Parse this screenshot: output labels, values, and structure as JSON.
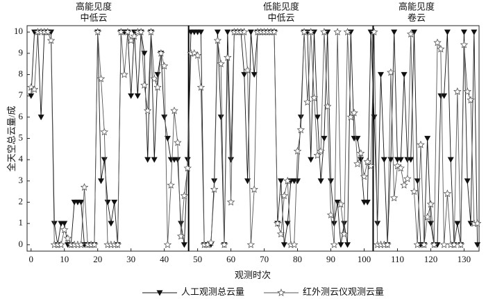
{
  "chart_data": {
    "type": "line",
    "xlabel": "观测时次",
    "ylabel": "全天空总云量/成",
    "xlim": [
      -1.2,
      134.5
    ],
    "ylim": [
      -0.3,
      10.3
    ],
    "xticks": [
      0,
      10,
      20,
      30,
      40,
      50,
      60,
      70,
      80,
      90,
      100,
      110,
      120,
      130
    ],
    "yticks": [
      0,
      1,
      2,
      3,
      4,
      5,
      6,
      7,
      8,
      9,
      10
    ],
    "vlines": [
      47.3,
      102.7
    ],
    "annotations": [
      [
        "高能见度",
        "中低云"
      ],
      [
        "低能见度",
        "中低云"
      ],
      [
        "高能见度",
        "卷云"
      ]
    ],
    "legend": "bottom",
    "x": [
      0,
      1,
      2,
      3,
      4,
      5,
      6,
      7,
      8,
      9,
      10,
      11,
      12,
      13,
      14,
      15,
      16,
      17,
      18,
      19,
      20,
      21,
      22,
      23,
      24,
      25,
      26,
      27,
      28,
      29,
      30,
      31,
      32,
      33,
      34,
      35,
      36,
      37,
      38,
      39,
      40,
      41,
      42,
      43,
      44,
      45,
      46,
      47,
      48,
      49,
      50,
      51,
      52,
      53,
      54,
      55,
      56,
      57,
      58,
      59,
      60,
      61,
      62,
      63,
      64,
      65,
      66,
      67,
      68,
      69,
      70,
      71,
      72,
      73,
      74,
      75,
      76,
      77,
      78,
      79,
      80,
      81,
      82,
      83,
      84,
      85,
      86,
      87,
      88,
      89,
      90,
      91,
      92,
      93,
      94,
      95,
      96,
      97,
      98,
      99,
      100,
      101,
      102,
      103,
      104,
      105,
      106,
      107,
      108,
      109,
      110,
      111,
      112,
      113,
      114,
      115,
      116,
      117,
      118,
      119,
      120,
      121,
      122,
      123,
      124,
      125,
      126,
      127,
      128,
      129,
      130,
      131,
      132,
      133,
      134
    ],
    "series": [
      {
        "name": "人工观测总云量",
        "color": "#111111",
        "marker": "triangle",
        "values": [
          7,
          10,
          10,
          6,
          10,
          10,
          10,
          1,
          0,
          1,
          1,
          0,
          0,
          2,
          2,
          2,
          0,
          0,
          0,
          0,
          10,
          3,
          4,
          2,
          1,
          2,
          0,
          10,
          10,
          10,
          7,
          10,
          7,
          10,
          9,
          4,
          10,
          4,
          8,
          9,
          6,
          5,
          4,
          4,
          4,
          1,
          0,
          4,
          10,
          10,
          10,
          10,
          0,
          0,
          0,
          3,
          10,
          6,
          0,
          10,
          4,
          10,
          10,
          10,
          8,
          3,
          10,
          8,
          10,
          10,
          10,
          10,
          10,
          10,
          1,
          3,
          0,
          1,
          3,
          3,
          3,
          6,
          10,
          10,
          4,
          10,
          6,
          3,
          5,
          10,
          3,
          1,
          2,
          0,
          1,
          0,
          10,
          5,
          5,
          4,
          2,
          2,
          10,
          6,
          1,
          8,
          4,
          0,
          4,
          10,
          4,
          4,
          8,
          4,
          4,
          10,
          3,
          0,
          0,
          5,
          1,
          0,
          0,
          7,
          7,
          10,
          4,
          0,
          1,
          0,
          10,
          3,
          1,
          10,
          0
        ]
      },
      {
        "name": "红外测云仪观测云量",
        "color": "#555555",
        "marker": "star",
        "values": [
          7.4,
          7.3,
          10,
          10,
          10,
          10,
          9.6,
          0,
          0,
          0,
          0.7,
          0.3,
          0,
          0,
          0,
          0,
          2.7,
          0,
          0,
          0,
          10,
          7.8,
          5.3,
          0,
          0,
          0,
          0,
          10,
          8,
          10,
          9.6,
          9.8,
          10,
          10,
          7.5,
          6.3,
          10,
          7.8,
          7.4,
          9,
          8.4,
          0,
          2.8,
          6.3,
          4.8,
          0.4,
          2.3,
          3.6,
          9,
          9,
          8.9,
          7.4,
          0,
          0,
          0.1,
          2.6,
          9.6,
          8.5,
          0,
          8.8,
          2,
          10,
          10,
          10,
          10,
          8.2,
          0,
          2.6,
          10,
          10,
          10,
          10,
          10,
          10,
          1,
          0.5,
          2.3,
          3,
          0,
          0,
          4.4,
          5.4,
          10,
          6.7,
          10,
          6.9,
          4.2,
          4.4,
          10,
          6.5,
          1.4,
          0,
          10,
          1.9,
          0.5,
          10,
          6,
          6.2,
          3.8,
          4.3,
          3.2,
          3.9,
          3.7,
          10,
          0,
          0,
          0,
          0,
          8.1,
          2.2,
          3.7,
          3.6,
          2.8,
          3.1,
          9.9,
          2.5,
          0,
          4.7,
          0,
          1.3,
          1.9,
          0,
          9.5,
          9.2,
          0,
          2.4,
          0,
          0,
          7.2,
          0,
          9.4,
          7.2,
          6.8,
          1,
          1
        ]
      }
    ]
  }
}
